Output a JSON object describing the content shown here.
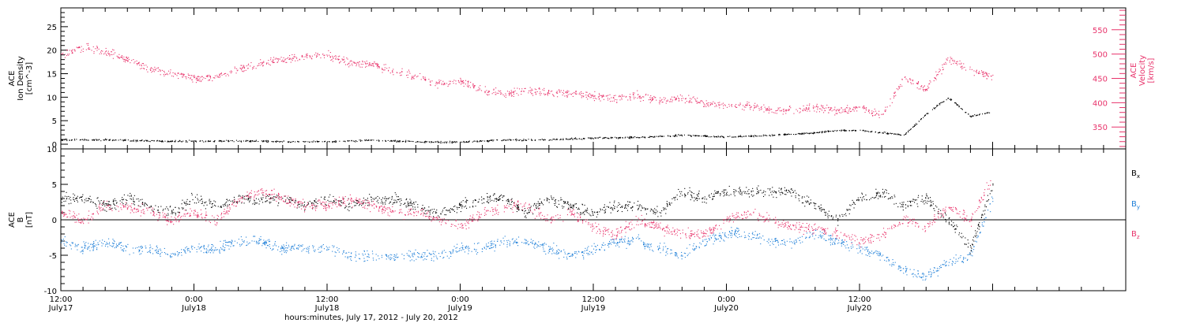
{
  "chart_data": [
    {
      "type": "scatter",
      "panel": "top",
      "left_axis": {
        "label_lines": [
          "ACE",
          "Ion Density",
          "[cm^-3]"
        ],
        "ylim": [
          -1,
          29
        ],
        "ticks": [
          0,
          5,
          10,
          15,
          20,
          25
        ],
        "color": "#000000"
      },
      "right_axis": {
        "label_lines": [
          "ACE",
          "Velocity",
          "[km/s]"
        ],
        "ylim": [
          305,
          595
        ],
        "ticks": [
          350,
          400,
          450,
          500,
          550
        ],
        "color": "#e8336b"
      },
      "series": [
        {
          "axis": "left",
          "color": "#000000",
          "x": [
            0,
            4,
            8,
            12,
            16,
            20,
            24,
            28,
            32,
            36,
            40,
            44,
            48,
            52,
            56,
            60,
            64,
            66,
            68,
            70,
            72,
            74,
            76,
            78,
            80,
            82,
            84
          ],
          "y": [
            1.0,
            1.0,
            0.8,
            0.7,
            0.8,
            0.6,
            0.6,
            0.9,
            0.6,
            0.5,
            1.0,
            1.0,
            1.4,
            1.5,
            2.0,
            1.6,
            2.0,
            2.2,
            2.5,
            3.0,
            3.0,
            2.5,
            2.0,
            6.5,
            10.0,
            6.0,
            7.0
          ]
        },
        {
          "axis": "right",
          "color": "#e8336b",
          "x": [
            0,
            2,
            4,
            6,
            8,
            10,
            12,
            14,
            16,
            18,
            20,
            22,
            24,
            26,
            28,
            30,
            32,
            34,
            36,
            38,
            40,
            42,
            44,
            46,
            48,
            50,
            52,
            54,
            56,
            58,
            60,
            62,
            64,
            66,
            68,
            70,
            72,
            74,
            76,
            78,
            80,
            82,
            84
          ],
          "y": [
            500,
            515,
            505,
            490,
            470,
            460,
            450,
            455,
            470,
            480,
            490,
            495,
            500,
            480,
            480,
            465,
            455,
            440,
            445,
            425,
            420,
            425,
            420,
            420,
            415,
            410,
            415,
            405,
            410,
            400,
            395,
            395,
            385,
            385,
            390,
            385,
            390,
            375,
            450,
            430,
            490,
            470,
            455
          ]
        }
      ]
    },
    {
      "type": "scatter",
      "panel": "bottom",
      "left_axis": {
        "label_lines": [
          "ACE",
          "B",
          "[nT]"
        ],
        "ylim": [
          -10,
          10
        ],
        "ticks": [
          -10,
          -5,
          0,
          5,
          10
        ],
        "color": "#000000"
      },
      "zero_line": true,
      "legend": [
        "Bx",
        "By",
        "Bz"
      ],
      "legend_position": "right",
      "series": [
        {
          "name": "Bx",
          "color": "#000000",
          "x": [
            0,
            2,
            4,
            6,
            8,
            10,
            12,
            14,
            16,
            18,
            20,
            22,
            24,
            26,
            28,
            30,
            32,
            34,
            36,
            38,
            40,
            42,
            44,
            46,
            48,
            50,
            52,
            54,
            56,
            58,
            60,
            62,
            64,
            66,
            68,
            70,
            72,
            74,
            76,
            78,
            80,
            82,
            84
          ],
          "y": [
            3,
            3,
            2,
            3,
            2,
            1,
            3,
            2,
            3,
            3,
            3,
            2,
            3,
            2,
            3,
            3,
            2,
            1,
            2,
            3,
            3,
            1,
            3,
            2,
            1,
            2,
            2,
            1,
            4,
            3,
            4,
            4,
            4,
            4,
            2,
            0,
            3,
            4,
            2,
            3,
            0,
            -4,
            5
          ]
        },
        {
          "name": "By",
          "color": "#1e7fd8",
          "x": [
            0,
            2,
            4,
            6,
            8,
            10,
            12,
            14,
            16,
            18,
            20,
            22,
            24,
            26,
            28,
            30,
            32,
            34,
            36,
            38,
            40,
            42,
            44,
            46,
            48,
            50,
            52,
            54,
            56,
            58,
            60,
            62,
            64,
            66,
            68,
            70,
            72,
            74,
            76,
            78,
            80,
            82,
            84
          ],
          "y": [
            -3,
            -4,
            -3,
            -4,
            -4,
            -5,
            -4,
            -4,
            -3,
            -3,
            -4,
            -4,
            -4,
            -5,
            -5,
            -5,
            -5,
            -5,
            -4,
            -4,
            -3,
            -3,
            -4,
            -5,
            -4,
            -3,
            -3,
            -4,
            -5,
            -3,
            -2,
            -2,
            -3,
            -3,
            -2,
            -3,
            -4,
            -5,
            -7,
            -8,
            -6,
            -5,
            3
          ]
        },
        {
          "name": "Bz",
          "color": "#e8336b",
          "x": [
            0,
            2,
            4,
            6,
            8,
            10,
            12,
            14,
            16,
            18,
            20,
            22,
            24,
            26,
            28,
            30,
            32,
            34,
            36,
            38,
            40,
            42,
            44,
            46,
            48,
            50,
            52,
            54,
            56,
            58,
            60,
            62,
            64,
            66,
            68,
            70,
            72,
            74,
            76,
            78,
            80,
            82,
            84
          ],
          "y": [
            1,
            0,
            2,
            2,
            1,
            0,
            1,
            0,
            3,
            4,
            3,
            2,
            2,
            3,
            2,
            1,
            1,
            0,
            -1,
            1,
            2,
            2,
            0,
            1,
            -1,
            -2,
            0,
            -1,
            -2,
            -2,
            0,
            1,
            0,
            -1,
            -1,
            -2,
            -3,
            -2,
            0,
            -1,
            2,
            0,
            6
          ]
        }
      ]
    }
  ],
  "x_axis": {
    "range_hours": [
      0,
      96
    ],
    "ticks": [
      {
        "h": 0,
        "top": "12:00",
        "bottom": "July17"
      },
      {
        "h": 12,
        "top": "0:00",
        "bottom": "July18"
      },
      {
        "h": 24,
        "top": "12:00",
        "bottom": "July18"
      },
      {
        "h": 36,
        "top": "0:00",
        "bottom": "July19"
      },
      {
        "h": 48,
        "top": "12:00",
        "bottom": "July19"
      },
      {
        "h": 60,
        "top": "0:00",
        "bottom": "July20"
      },
      {
        "h": 72,
        "top": "12:00",
        "bottom": "July20"
      }
    ],
    "title": "hours:minutes, July 17, 2012 - July 20, 2012"
  },
  "legend_labels": {
    "bx": "B",
    "bx_sub": "x",
    "by": "B",
    "by_sub": "y",
    "bz": "B",
    "bz_sub": "z"
  },
  "colors": {
    "black": "#000000",
    "pink": "#e8336b",
    "blue": "#1e7fd8"
  }
}
